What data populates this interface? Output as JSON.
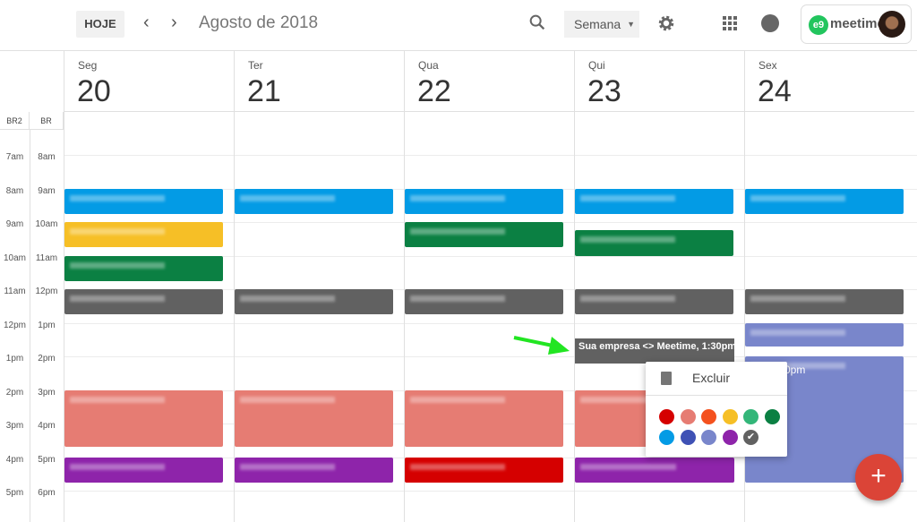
{
  "header": {
    "today_label": "HOJE",
    "prev_icon": "‹",
    "next_icon": "›",
    "title": "Agosto de 2018",
    "view_label": "Semana",
    "brand": "meetime",
    "brand_logo": "e9"
  },
  "timezones": [
    "BR2",
    "BR"
  ],
  "hours_br2": [
    "7am",
    "8am",
    "9am",
    "10am",
    "11am",
    "12pm",
    "1pm",
    "2pm",
    "3pm",
    "4pm",
    "5pm"
  ],
  "hours_br": [
    "8am",
    "9am",
    "10am",
    "11am",
    "12pm",
    "1pm",
    "2pm",
    "3pm",
    "4pm",
    "5pm",
    "6pm"
  ],
  "days": [
    {
      "name": "Seg",
      "num": "20",
      "events": [
        {
          "start": 9,
          "end": 9.75,
          "color": "#039be5"
        },
        {
          "start": 10,
          "end": 10.75,
          "color": "#f6bf26"
        },
        {
          "start": 11,
          "end": 11.75,
          "color": "#0b8043"
        },
        {
          "start": 12,
          "end": 12.75,
          "color": "#616161"
        },
        {
          "start": 15,
          "end": 16.7,
          "color": "#e67c73"
        },
        {
          "start": 17,
          "end": 17.75,
          "color": "#8e24aa"
        }
      ]
    },
    {
      "name": "Ter",
      "num": "21",
      "events": [
        {
          "start": 9,
          "end": 9.75,
          "color": "#039be5"
        },
        {
          "start": 12,
          "end": 12.75,
          "color": "#616161"
        },
        {
          "start": 15,
          "end": 16.7,
          "color": "#e67c73"
        },
        {
          "start": 17,
          "end": 17.75,
          "color": "#8e24aa"
        }
      ]
    },
    {
      "name": "Qua",
      "num": "22",
      "events": [
        {
          "start": 9,
          "end": 9.75,
          "color": "#039be5"
        },
        {
          "start": 10,
          "end": 10.75,
          "color": "#0b8043"
        },
        {
          "start": 12,
          "end": 12.75,
          "color": "#616161"
        },
        {
          "start": 15,
          "end": 16.7,
          "color": "#e67c73"
        },
        {
          "start": 17,
          "end": 17.75,
          "color": "#d50000"
        }
      ]
    },
    {
      "name": "Qui",
      "num": "23",
      "events": [
        {
          "start": 9,
          "end": 9.75,
          "color": "#039be5"
        },
        {
          "start": 10.25,
          "end": 11,
          "color": "#0b8043"
        },
        {
          "start": 12,
          "end": 12.75,
          "color": "#616161"
        },
        {
          "start": 15,
          "end": 16.7,
          "color": "#e67c73"
        },
        {
          "start": 17,
          "end": 17.75,
          "color": "#8e24aa"
        }
      ]
    },
    {
      "name": "Sex",
      "num": "24",
      "events": [
        {
          "start": 9,
          "end": 9.75,
          "color": "#039be5"
        },
        {
          "start": 12,
          "end": 12.75,
          "color": "#616161"
        },
        {
          "start": 13,
          "end": 13.7,
          "color": "#7986cb"
        },
        {
          "start": 14,
          "end": 17.75,
          "color": "#7986cb",
          "text": "0pm"
        }
      ]
    }
  ],
  "dragged_event": {
    "label": "Sua empresa <> Meetime, 1:30pm",
    "color": "#616161"
  },
  "popup": {
    "delete_label": "Excluir",
    "colors": [
      "#d50000",
      "#e67c73",
      "#f4511e",
      "#f6bf26",
      "#33b679",
      "#0b8043",
      "#039be5",
      "#3f51b5",
      "#7986cb",
      "#8e24aa",
      "#616161"
    ],
    "selected_index": 10,
    "hovered_index": 2
  },
  "fab_icon": "+"
}
